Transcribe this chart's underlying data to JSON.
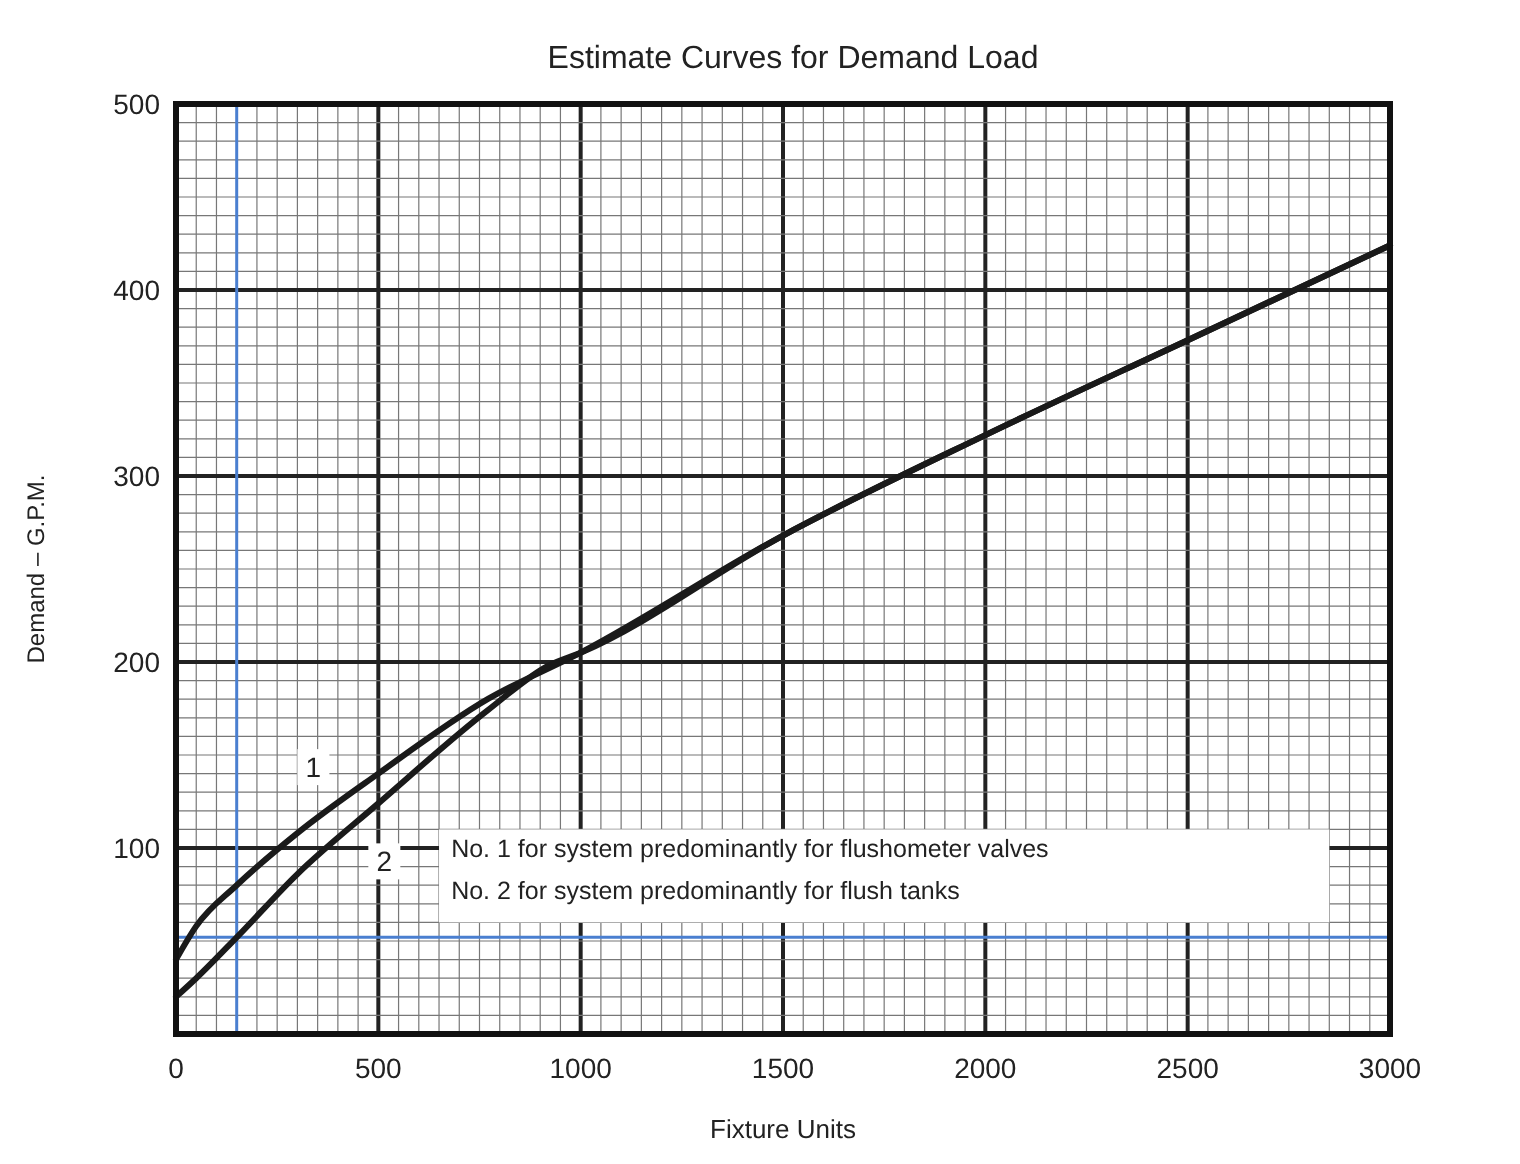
{
  "chart_data": {
    "type": "line",
    "title": "Estimate Curves for Demand Load",
    "xlabel": "Fixture Units",
    "ylabel": "Demand – G.P.M.",
    "xlim": [
      0,
      3000
    ],
    "xticks": [
      0,
      500,
      1000,
      1500,
      2000,
      2500,
      3000
    ],
    "ylim": [
      0,
      500
    ],
    "yticks": [
      100,
      200,
      300,
      400,
      500
    ],
    "grid": true,
    "line_style": "solid",
    "series": [
      {
        "name": "1",
        "color": "#1a1a1a",
        "x": [
          0,
          50,
          150,
          300,
          500,
          770,
          1000,
          1500,
          2000,
          2500,
          3000
        ],
        "values": [
          40,
          58,
          80,
          108,
          140,
          180,
          205,
          268,
          322,
          373,
          424
        ]
      },
      {
        "name": "2",
        "color": "#1a1a1a",
        "x": [
          0,
          50,
          150,
          300,
          500,
          770,
          920,
          1000,
          1500,
          2000,
          2500,
          3000
        ],
        "values": [
          20,
          30,
          52,
          86,
          124,
          174,
          198,
          205,
          268,
          322,
          373,
          424
        ]
      }
    ],
    "ref_lines": [
      {
        "axis": "x",
        "value": 150,
        "color": "#4a7fd0"
      },
      {
        "axis": "y",
        "value": 52,
        "color": "#4a7fd0"
      }
    ],
    "annotations": [
      "No. 1 for system predominantly for flushometer valves",
      "No. 2 for system predominantly for flush tanks"
    ]
  }
}
